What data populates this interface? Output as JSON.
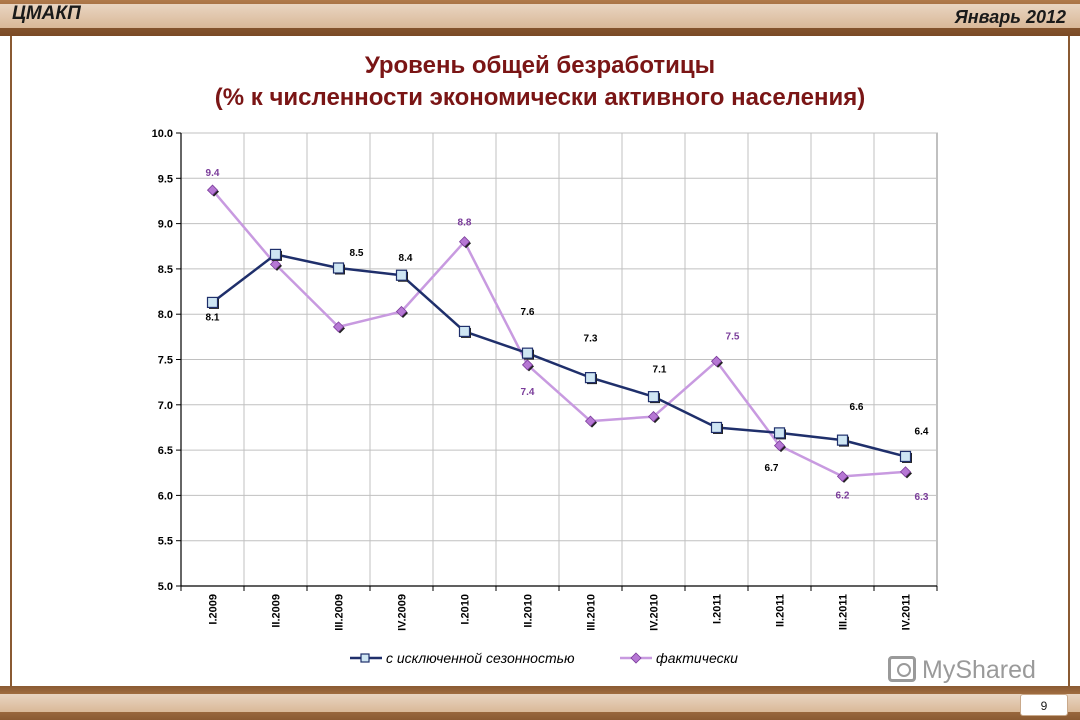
{
  "header": {
    "org": "ЦМАКП",
    "date": "Январь 2012"
  },
  "footer": {
    "page_number": "9",
    "watermark": "MyShared"
  },
  "colors": {
    "seasonal": "#1f2f6b",
    "seasonal_marker": "#cfe6f3",
    "actual": "#c89ae0",
    "actual_marker": "#b677d4",
    "frame": "#8a5a32"
  },
  "chart_data": {
    "type": "line",
    "title": "Уровень общей безработицы",
    "subtitle": "(% к численности экономически активного населения)",
    "xlabel": "",
    "ylabel": "",
    "ylim": [
      5.0,
      10.0
    ],
    "yticks": [
      "5.0",
      "5.5",
      "6.0",
      "6.5",
      "7.0",
      "7.5",
      "8.0",
      "8.5",
      "9.0",
      "9.5",
      "10.0"
    ],
    "categories": [
      "I.2009",
      "II.2009",
      "III.2009",
      "IV.2009",
      "I.2010",
      "II.2010",
      "III.2010",
      "IV.2010",
      "I.2011",
      "II.2011",
      "III.2011",
      "IV.2011"
    ],
    "grid": true,
    "legend_position": "bottom",
    "series": [
      {
        "name": "с исключенной сезонностью",
        "values": [
          8.13,
          8.66,
          8.51,
          8.43,
          7.81,
          7.57,
          7.3,
          7.09,
          6.75,
          6.69,
          6.61,
          6.43
        ],
        "labels": [
          "8.1",
          "",
          "8.5",
          "8.4",
          "",
          "7.6",
          "7.3",
          "7.1",
          "",
          "6.7",
          "6.6",
          "6.4"
        ]
      },
      {
        "name": "фактически",
        "values": [
          9.37,
          8.55,
          7.86,
          8.03,
          8.8,
          7.44,
          6.82,
          6.87,
          7.48,
          6.55,
          6.21,
          6.26
        ],
        "labels": [
          "9.4",
          "",
          "",
          "",
          "8.8",
          "7.4",
          "",
          "",
          "7.5",
          "",
          "6.2",
          "6.3"
        ]
      }
    ]
  }
}
